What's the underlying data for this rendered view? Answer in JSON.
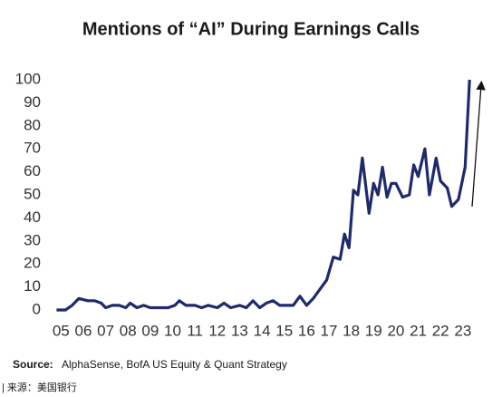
{
  "chart_data": {
    "type": "line",
    "title": "Mentions of “AI” During Earnings Calls",
    "source_label": "Source:",
    "source": "AlphaSense, BofA US Equity & Quant Strategy",
    "footer": "| 来源：美国银行",
    "color": "#1f2a6b",
    "x": [
      4.8,
      5.2,
      5.5,
      5.8,
      6.2,
      6.5,
      6.8,
      7.0,
      7.3,
      7.6,
      7.9,
      8.1,
      8.4,
      8.7,
      9.0,
      9.5,
      9.8,
      10.1,
      10.3,
      10.6,
      11.0,
      11.3,
      11.6,
      12.0,
      12.3,
      12.6,
      13.0,
      13.3,
      13.6,
      13.9,
      14.2,
      14.5,
      14.8,
      15.1,
      15.4,
      15.7,
      16.0,
      16.3,
      16.6,
      16.9,
      17.2,
      17.5,
      17.7,
      17.9,
      18.1,
      18.3,
      18.5,
      18.8,
      19.0,
      19.2,
      19.4,
      19.6,
      19.8,
      20.0,
      20.3,
      20.6,
      20.8,
      21.0,
      21.3,
      21.5,
      21.8,
      22.0,
      22.3,
      22.5,
      22.8,
      23.1,
      23.3
    ],
    "values": [
      0,
      0,
      2,
      5,
      4,
      4,
      3,
      1,
      2,
      2,
      1,
      3,
      1,
      2,
      1,
      1,
      1,
      2,
      4,
      2,
      2,
      1,
      2,
      1,
      3,
      1,
      2,
      1,
      4,
      1,
      3,
      4,
      2,
      2,
      2,
      6,
      2,
      5,
      9,
      13,
      23,
      22,
      33,
      27,
      52,
      50,
      66,
      42,
      55,
      50,
      62,
      49,
      55,
      55,
      49,
      50,
      63,
      58,
      70,
      50,
      66,
      56,
      53,
      45,
      48,
      62,
      100
    ],
    "xlim": [
      4.5,
      23.9
    ],
    "xticks": [
      {
        "value": 5,
        "label": "05"
      },
      {
        "value": 6,
        "label": "06"
      },
      {
        "value": 7,
        "label": "07"
      },
      {
        "value": 8,
        "label": "08"
      },
      {
        "value": 9,
        "label": "09"
      },
      10,
      11,
      12,
      13,
      14,
      15,
      16,
      17,
      18,
      19,
      20,
      21,
      22,
      23
    ],
    "ylim": [
      0,
      100
    ],
    "yticks": [
      0,
      10,
      20,
      30,
      40,
      50,
      60,
      70,
      80,
      90,
      100
    ]
  }
}
